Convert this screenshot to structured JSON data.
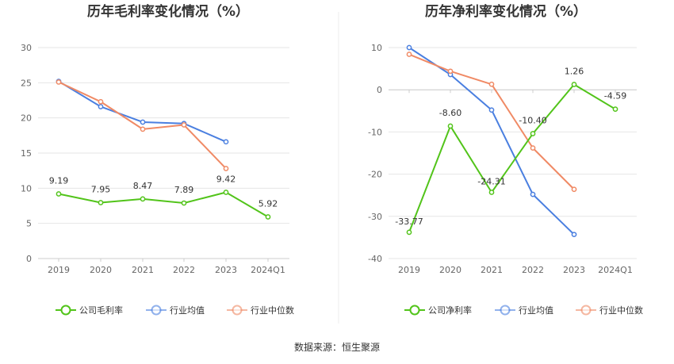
{
  "source_text": "数据来源：恒生聚源",
  "colors": {
    "company": "#52c41a",
    "industry_avg": "#4a7fe0",
    "industry_median": "#f08a65",
    "grid": "#e6e6e6",
    "axis": "#cccccc"
  },
  "chart_data": [
    {
      "type": "line",
      "title": "历年毛利率变化情况（%）",
      "categories": [
        "2019",
        "2020",
        "2021",
        "2022",
        "2023",
        "2024Q1"
      ],
      "ylim": [
        0,
        30
      ],
      "yticks": [
        0,
        5,
        10,
        15,
        20,
        25,
        30
      ],
      "grid": true,
      "legend_position": "bottom",
      "series": [
        {
          "name": "公司毛利率",
          "color_key": "company",
          "values": [
            9.19,
            7.95,
            8.47,
            7.89,
            9.42,
            5.92
          ],
          "labels": [
            "9.19",
            "7.95",
            "8.47",
            "7.89",
            "9.42",
            "5.92"
          ]
        },
        {
          "name": "行业均值",
          "color_key": "industry_avg",
          "values": [
            25.2,
            21.6,
            19.4,
            19.2,
            16.6,
            null
          ],
          "labels": null
        },
        {
          "name": "行业中位数",
          "color_key": "industry_median",
          "values": [
            25.1,
            22.3,
            18.4,
            19.0,
            12.8,
            null
          ],
          "labels": null
        }
      ]
    },
    {
      "type": "line",
      "title": "历年净利率变化情况（%）",
      "categories": [
        "2019",
        "2020",
        "2021",
        "2022",
        "2023",
        "2024Q1"
      ],
      "ylim": [
        -40,
        10
      ],
      "yticks": [
        -40,
        -30,
        -20,
        -10,
        0,
        10
      ],
      "grid": true,
      "legend_position": "bottom",
      "series": [
        {
          "name": "公司净利率",
          "color_key": "company",
          "values": [
            -33.77,
            -8.6,
            -24.31,
            -10.4,
            1.26,
            -4.59
          ],
          "labels": [
            "-33.77",
            "-8.60",
            "-24.31",
            "-10.40",
            "1.26",
            "-4.59"
          ]
        },
        {
          "name": "行业均值",
          "color_key": "industry_avg",
          "values": [
            10.0,
            3.6,
            -4.8,
            -24.8,
            -34.3,
            null
          ],
          "labels": null
        },
        {
          "name": "行业中位数",
          "color_key": "industry_median",
          "values": [
            8.4,
            4.4,
            1.3,
            -13.8,
            -23.6,
            null
          ],
          "labels": null
        }
      ]
    }
  ]
}
